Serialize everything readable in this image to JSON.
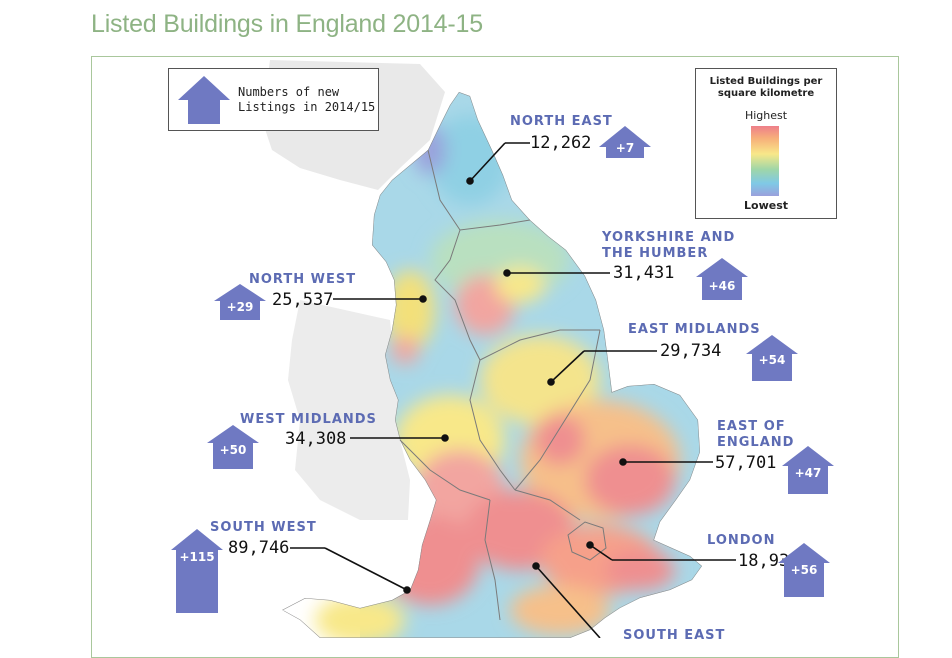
{
  "title": "Listed Buildings in England 2014-15",
  "key": {
    "text": "Numbers of new\nListings in 2014/15",
    "icon": "house-arrow-icon"
  },
  "legend": {
    "title": "Listed Buildings per\nsquare kilometre",
    "high": "Highest",
    "low": "Lowest",
    "colors": [
      "#ee7f8a",
      "#f7b07a",
      "#f8e889",
      "#9fd6a8",
      "#7fc9e6",
      "#9aa0dc"
    ]
  },
  "colors": {
    "arrow": "#6f79c2",
    "region_text": "#5c6bb3",
    "title": "#8eb384",
    "sea": "#ffffff",
    "neighbour_land": "#e9e9e9"
  },
  "regions": [
    {
      "name": "NORTH EAST",
      "buildings": "12,262",
      "new_listings": "+7"
    },
    {
      "name": "YORKSHIRE AND\nTHE HUMBER",
      "buildings": "31,431",
      "new_listings": "+46"
    },
    {
      "name": "NORTH WEST",
      "buildings": "25,537",
      "new_listings": "+29"
    },
    {
      "name": "EAST MIDLANDS",
      "buildings": "29,734",
      "new_listings": "+54"
    },
    {
      "name": "WEST MIDLANDS",
      "buildings": "34,308",
      "new_listings": "+50"
    },
    {
      "name": "EAST OF\nENGLAND",
      "buildings": "57,701",
      "new_listings": "+47"
    },
    {
      "name": "SOUTH WEST",
      "buildings": "89,746",
      "new_listings": "+115"
    },
    {
      "name": "LONDON",
      "buildings": "18,936",
      "new_listings": "+56"
    },
    {
      "name": "SOUTH EAST",
      "buildings": "",
      "new_listings": ""
    }
  ]
}
